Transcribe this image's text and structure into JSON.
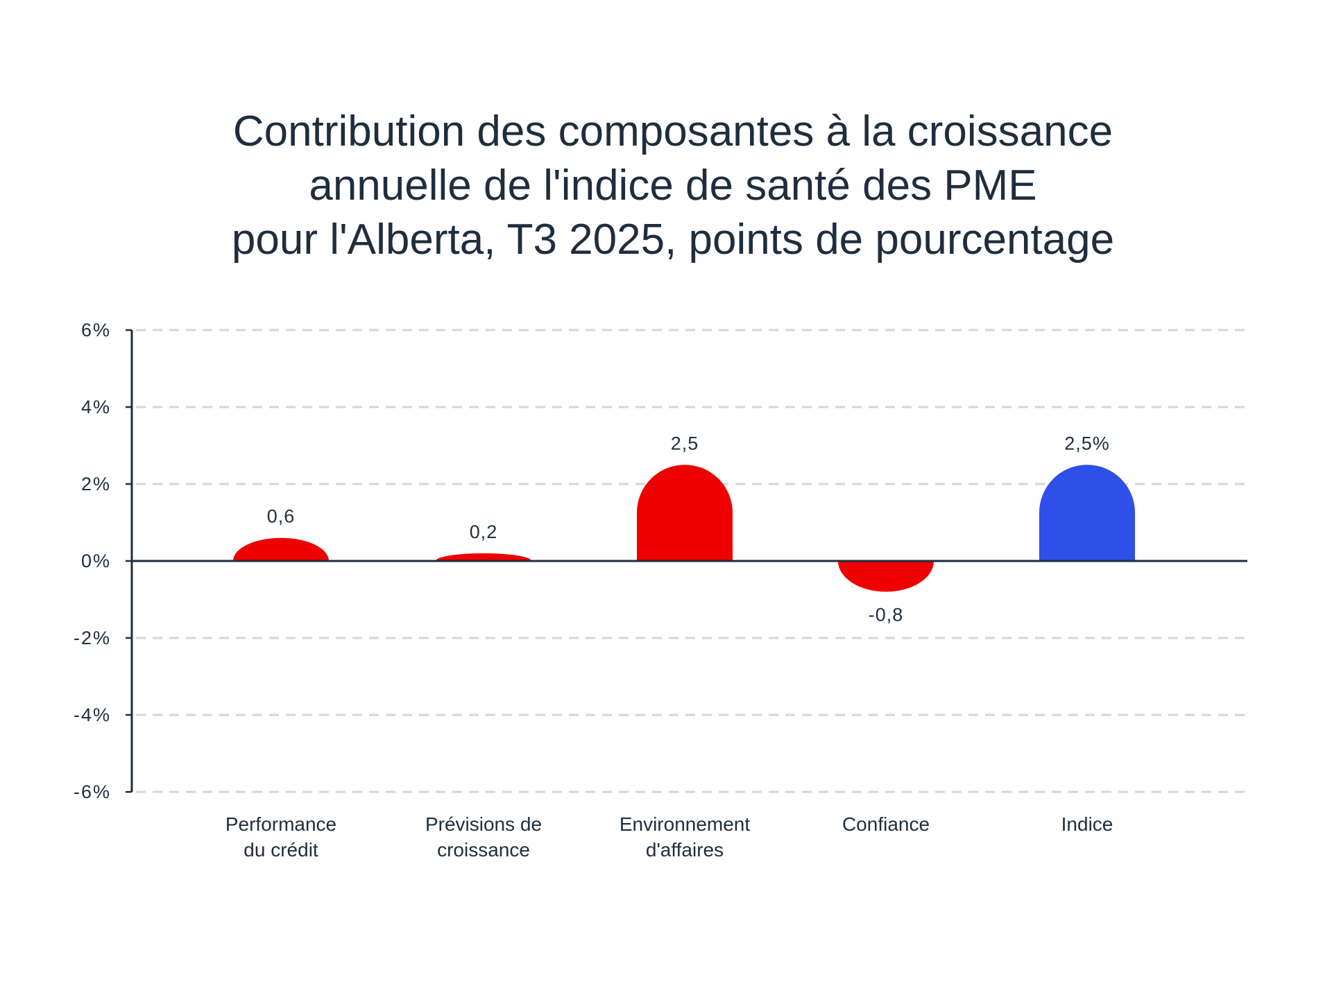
{
  "chart_data": {
    "type": "bar",
    "title_lines": [
      "Contribution des composantes à la croissance",
      "annuelle de l'indice de santé des PME",
      "pour l'Alberta, T3 2025, points de pourcentage"
    ],
    "categories": [
      [
        "Performance",
        "du crédit"
      ],
      [
        "Prévisions de",
        "croissance"
      ],
      [
        "Environnement",
        "d'affaires"
      ],
      [
        "Confiance"
      ],
      [
        "Indice"
      ]
    ],
    "values": [
      0.6,
      0.2,
      2.5,
      -0.8,
      2.5
    ],
    "data_labels": [
      "0,6",
      "0,2",
      "2,5",
      "-0,8",
      "2,5%"
    ],
    "bar_colors": [
      "#ee0000",
      "#ee0000",
      "#ee0000",
      "#ee0000",
      "#2e4fe8"
    ],
    "ylim": [
      -6,
      6
    ],
    "y_ticks": [
      6,
      4,
      2,
      0,
      -2,
      -4,
      -6
    ],
    "y_tick_labels": [
      "6%",
      "4%",
      "2%",
      "0%",
      "-2%",
      "-4%",
      "-6%"
    ],
    "grid": true,
    "xlabel": "",
    "ylabel": ""
  },
  "colors": {
    "text": "#1f2d3d",
    "axis": "#1f2d3d",
    "grid": "#d6d6d6",
    "component_bar": "#ee0000",
    "index_bar": "#2e4fe8"
  }
}
